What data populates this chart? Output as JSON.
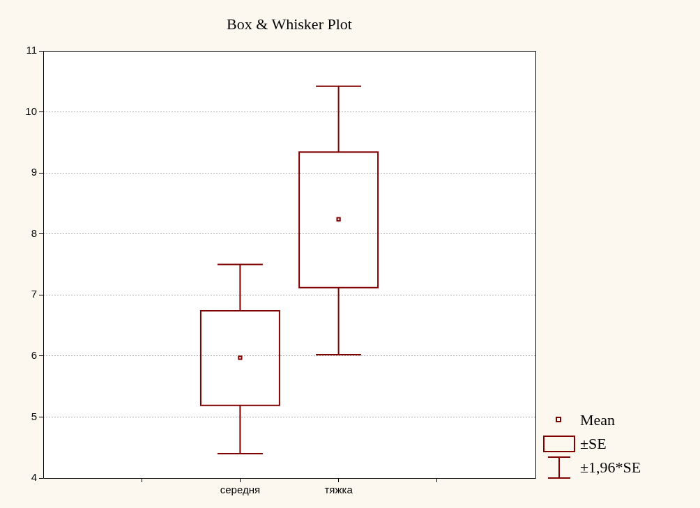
{
  "chart_data": {
    "type": "box",
    "title": "Box & Whisker Plot",
    "categories": [
      null,
      "середня",
      "тяжка",
      null
    ],
    "series": [
      {
        "color": "#800000",
        "boxes": [
          null,
          {
            "low": 4.4,
            "q1": 5.19,
            "q3": 6.74,
            "high": 7.5,
            "mean": 5.97
          },
          {
            "low": 6.02,
            "q1": 7.12,
            "q3": 9.34,
            "high": 10.42,
            "mean": 8.24
          },
          null
        ]
      }
    ],
    "ylim": [
      4,
      11
    ],
    "yticks": [
      4,
      5,
      6,
      7,
      8,
      9,
      10,
      11
    ],
    "grid": "y",
    "annotations": [
      "Mean",
      "±SE",
      "±1,96*SE"
    ]
  }
}
